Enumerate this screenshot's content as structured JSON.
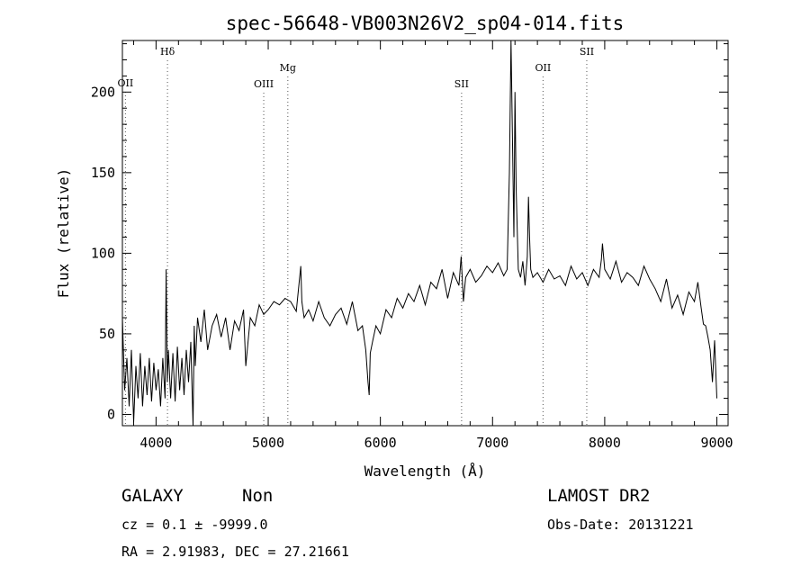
{
  "chart_data": {
    "type": "line",
    "title": "spec-56648-VB003N26V2_sp04-014.fits",
    "xlabel": "Wavelength (Å)",
    "ylabel": "Flux (relative)",
    "xlim": [
      3700,
      9100
    ],
    "ylim": [
      -7,
      232
    ],
    "xticks": [
      4000,
      5000,
      6000,
      7000,
      8000,
      9000
    ],
    "yticks": [
      0,
      50,
      100,
      150,
      200
    ],
    "grid": false,
    "series": [
      {
        "x": [
          3700,
          3720,
          3740,
          3760,
          3780,
          3800,
          3820,
          3840,
          3860,
          3880,
          3900,
          3920,
          3940,
          3960,
          3980,
          4000,
          4020,
          4040,
          4060,
          4080,
          4090,
          4100,
          4110,
          4130,
          4150,
          4170,
          4190,
          4210,
          4230,
          4250,
          4270,
          4290,
          4310,
          4330,
          4340,
          4350,
          4370,
          4400,
          4430,
          4460,
          4500,
          4540,
          4580,
          4620,
          4660,
          4700,
          4740,
          4780,
          4800,
          4840,
          4880,
          4920,
          4960,
          5000,
          5050,
          5100,
          5150,
          5200,
          5250,
          5290,
          5300,
          5320,
          5360,
          5400,
          5450,
          5500,
          5550,
          5600,
          5650,
          5700,
          5750,
          5800,
          5840,
          5870,
          5890,
          5900,
          5910,
          5930,
          5960,
          6000,
          6050,
          6100,
          6150,
          6200,
          6250,
          6300,
          6350,
          6400,
          6450,
          6500,
          6550,
          6600,
          6650,
          6700,
          6720,
          6740,
          6760,
          6800,
          6850,
          6900,
          6950,
          7000,
          7050,
          7100,
          7130,
          7150,
          7165,
          7180,
          7190,
          7200,
          7210,
          7230,
          7250,
          7270,
          7290,
          7310,
          7320,
          7330,
          7340,
          7360,
          7400,
          7450,
          7500,
          7550,
          7600,
          7650,
          7700,
          7750,
          7800,
          7850,
          7900,
          7950,
          7970,
          7980,
          8000,
          8050,
          8100,
          8150,
          8200,
          8250,
          8300,
          8350,
          8400,
          8450,
          8500,
          8550,
          8600,
          8650,
          8700,
          8750,
          8800,
          8830,
          8860,
          8880,
          8900,
          8920,
          8940,
          8960,
          8980,
          9000
        ],
        "values": [
          60,
          15,
          35,
          5,
          40,
          -5,
          30,
          10,
          38,
          5,
          30,
          12,
          35,
          8,
          32,
          15,
          28,
          5,
          35,
          10,
          90,
          20,
          40,
          10,
          38,
          8,
          42,
          15,
          35,
          12,
          40,
          20,
          45,
          -7,
          55,
          30,
          60,
          45,
          65,
          40,
          55,
          62,
          48,
          60,
          40,
          58,
          52,
          65,
          30,
          60,
          55,
          68,
          62,
          65,
          70,
          68,
          72,
          70,
          64,
          92,
          70,
          60,
          65,
          58,
          70,
          60,
          55,
          62,
          66,
          56,
          70,
          52,
          55,
          40,
          20,
          12,
          38,
          45,
          55,
          50,
          65,
          60,
          72,
          66,
          75,
          70,
          80,
          68,
          82,
          78,
          90,
          72,
          88,
          80,
          98,
          70,
          85,
          90,
          82,
          86,
          92,
          88,
          94,
          86,
          90,
          150,
          232,
          160,
          110,
          200,
          140,
          90,
          85,
          95,
          80,
          98,
          135,
          110,
          90,
          85,
          88,
          82,
          90,
          84,
          86,
          80,
          92,
          84,
          88,
          80,
          90,
          85,
          96,
          106,
          90,
          84,
          95,
          82,
          88,
          85,
          80,
          92,
          84,
          78,
          70,
          84,
          66,
          74,
          62,
          76,
          70,
          82,
          66,
          56,
          55,
          48,
          40,
          20,
          46,
          10
        ]
      }
    ],
    "reference_lines": [
      {
        "label": "OII",
        "x": 3727
      },
      {
        "label": "Hδ",
        "x": 4102
      },
      {
        "label": "OIII",
        "x": 4960
      },
      {
        "label": "Mg",
        "x": 5175
      },
      {
        "label": "SII",
        "x": 6724
      },
      {
        "label": "OII",
        "x": 7450
      },
      {
        "label": "SII",
        "x": 7840
      }
    ]
  },
  "info": {
    "class": "GALAXY",
    "subclass": "Non",
    "redshift": "cz = 0.1 ± -9999.0",
    "coords": "RA =   2.91983, DEC =  27.21661",
    "survey": "LAMOST DR2",
    "obs_date": "Obs-Date: 20131221"
  },
  "colors": {
    "line": "#000000",
    "background": "#ffffff"
  }
}
